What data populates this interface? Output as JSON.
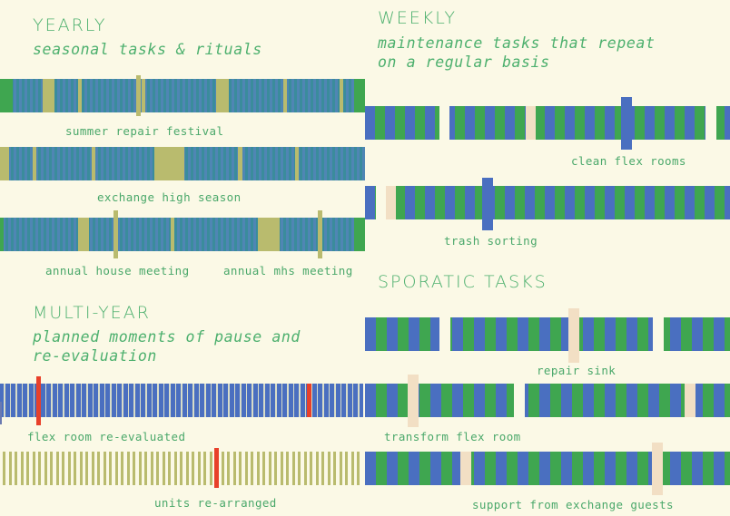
{
  "yearly": {
    "title": "YEARLY",
    "subtitle": "seasonal tasks & rituals",
    "labels": [
      "summer repair festival",
      "exchange high season",
      "annual house meeting",
      "annual mhs meeting"
    ]
  },
  "weekly": {
    "title": "WEEKLY",
    "subtitle_line1": "maintenance tasks that repeat",
    "subtitle_line2": "on a regular basis",
    "labels": [
      "clean flex rooms",
      "trash sorting"
    ]
  },
  "multi_year": {
    "title": "MULTI-YEAR",
    "subtitle_line1": "planned moments of pause and",
    "subtitle_line2": "re-evaluation",
    "labels": [
      "flex room re-evaluated",
      "units re-arranged"
    ]
  },
  "sporadic": {
    "title": "SPORATIC TASKS",
    "labels": [
      "repair sink",
      "transform flex room",
      "support from exchange guests"
    ]
  },
  "colors": {
    "background": "#fbf9e6",
    "teal": "#3a8c9c",
    "blue": "#4a6fc0",
    "green": "#3fa650",
    "olive": "#b9bb6e",
    "peach": "#f2dfc4",
    "red": "#e8402a",
    "text": "#4db06e"
  }
}
